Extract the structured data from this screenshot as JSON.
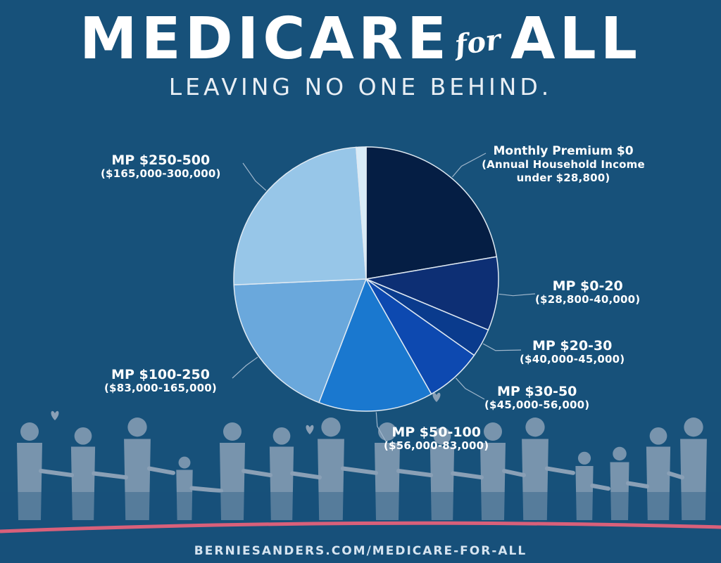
{
  "header": {
    "title_left": "MEDICARE",
    "title_for": "for",
    "title_right": "ALL",
    "subtitle": "LEAVING NO ONE BEHIND."
  },
  "footer": {
    "url": "BERNIESANDERS.COM/MEDICARE-FOR-ALL"
  },
  "colors": {
    "background": "#17517a",
    "accent_line": "#d9607a",
    "people": "#8aa0b6"
  },
  "chart_data": {
    "type": "pie",
    "title": "",
    "slices": [
      {
        "mp": "Monthly Premium $0",
        "income": "(Annual Household Income under $28,800)",
        "value": 22.3,
        "color": "#051e44"
      },
      {
        "mp": "MP $0-20",
        "income": "($28,800-40,000)",
        "value": 9.0,
        "color": "#0d2f74"
      },
      {
        "mp": "MP $20-30",
        "income": "($40,000-45,000)",
        "value": 3.5,
        "color": "#0a3b8d"
      },
      {
        "mp": "MP $30-50",
        "income": "($45,000-56,000)",
        "value": 7.0,
        "color": "#0d49b0"
      },
      {
        "mp": "MP $50-100",
        "income": "($56,000-83,000)",
        "value": 14.0,
        "color": "#1a78cf"
      },
      {
        "mp": "MP $100-250",
        "income": "($83,000-165,000)",
        "value": 18.5,
        "color": "#6aa8dc"
      },
      {
        "mp": "MP $250-500",
        "income": "($165,000-300,000)",
        "value": 24.5,
        "color": "#97c6e8"
      },
      {
        "mp": "",
        "income": "",
        "value": 1.2,
        "color": "#d8ecf8"
      }
    ]
  }
}
